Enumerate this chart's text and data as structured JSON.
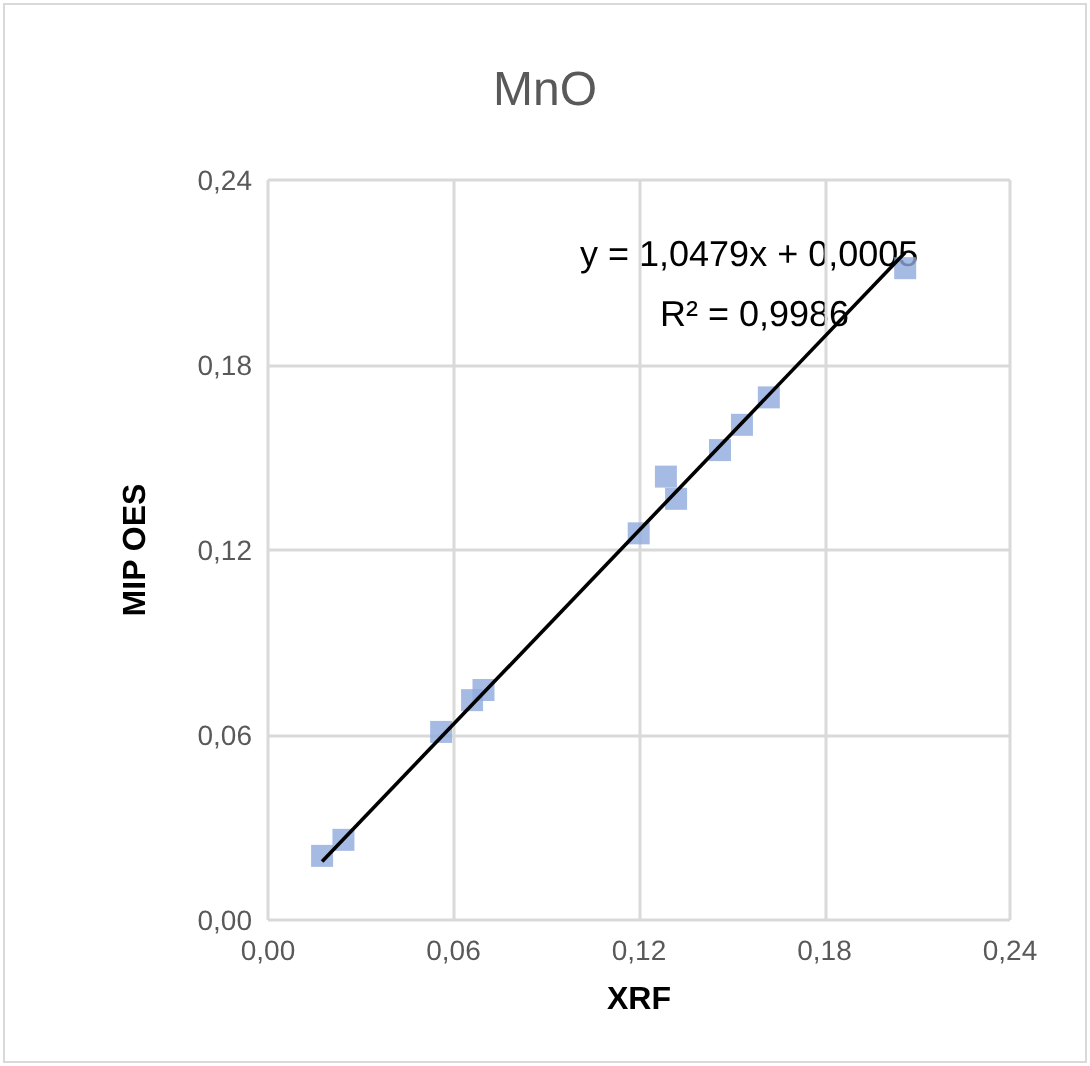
{
  "chart_data": {
    "type": "scatter",
    "title": "MnO",
    "xlabel": "XRF",
    "ylabel": "MIP OES",
    "x": [
      0.0175,
      0.0244,
      0.056,
      0.066,
      0.0697,
      0.1199,
      0.132,
      0.1287,
      0.1462,
      0.1533,
      0.162,
      0.2061
    ],
    "series": [
      {
        "color": "#8faadc",
        "values": [
          0.0208,
          0.026,
          0.061,
          0.0713,
          0.0746,
          0.1254,
          0.1366,
          0.1438,
          0.1524,
          0.1606,
          0.1695,
          0.2114
        ]
      },
      {
        "type": "line",
        "marker": "none",
        "color": "#000000",
        "x": [
          0.0175,
          0.2061
        ],
        "values": [
          0.019,
          0.2165
        ]
      }
    ],
    "xlim": [
      0,
      0.24
    ],
    "ylim": [
      0,
      0.24
    ],
    "xticks": [
      {
        "value": 0,
        "label": "0,00"
      },
      {
        "value": 0.06,
        "label": "0,06"
      },
      {
        "value": 0.12,
        "label": "0,12"
      },
      {
        "value": 0.18,
        "label": "0,18"
      },
      {
        "value": 0.24,
        "label": "0,24"
      }
    ],
    "yticks": [
      {
        "value": 0,
        "label": "0,00"
      },
      {
        "value": 0.06,
        "label": "0,06"
      },
      {
        "value": 0.12,
        "label": "0,12"
      },
      {
        "value": 0.18,
        "label": "0,18"
      },
      {
        "value": 0.24,
        "label": "0,24"
      }
    ],
    "annotations": [
      "y = 1,0479x + 0,0005",
      "R² = 0,9986"
    ],
    "grid": true,
    "marker": "square"
  }
}
